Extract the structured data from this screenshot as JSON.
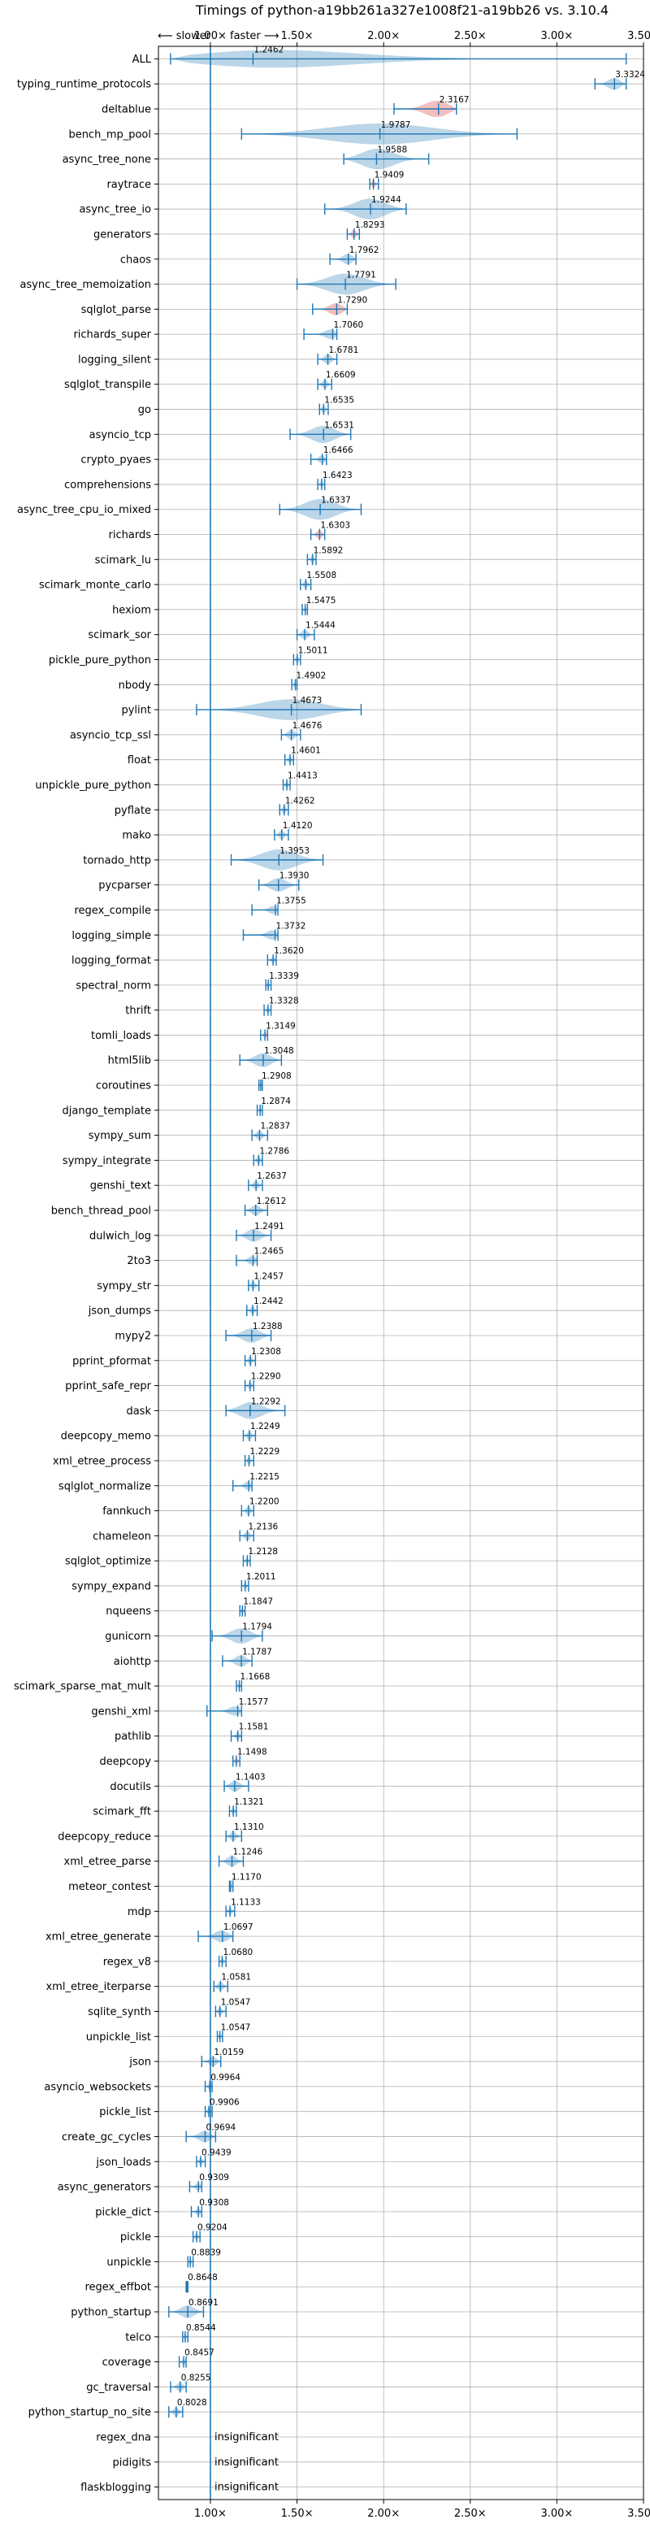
{
  "chart_data": {
    "type": "violin",
    "title": "Timings of python-a19bb261a327e1008f21-a19bb26 vs. 3.10.4",
    "direction_left": "⟵ slower",
    "direction_right": "faster ⟶",
    "xlim": [
      0.7,
      3.5
    ],
    "xticks": [
      1.0,
      1.5,
      2.0,
      2.5,
      3.0,
      3.5
    ],
    "xtick_labels": [
      "1.00×",
      "1.50×",
      "2.00×",
      "2.50×",
      "3.00×",
      "3.50×"
    ],
    "reference_line": 1.0,
    "grid": true,
    "colors": {
      "normal": "#1f77b4",
      "highlight": "#d62728",
      "axis": "#000000",
      "grid": "#b0b0b0"
    },
    "categories": [
      {
        "name": "ALL",
        "value": 1.2462,
        "min": 0.77,
        "max": 3.4
      },
      {
        "name": "typing_runtime_protocols",
        "value": 3.3324,
        "min": 3.22,
        "max": 3.4
      },
      {
        "name": "deltablue",
        "value": 2.3167,
        "min": 2.06,
        "max": 2.42,
        "highlight": true
      },
      {
        "name": "bench_mp_pool",
        "value": 1.9787,
        "min": 1.18,
        "max": 2.77
      },
      {
        "name": "async_tree_none",
        "value": 1.9588,
        "min": 1.77,
        "max": 2.26
      },
      {
        "name": "raytrace",
        "value": 1.9409,
        "min": 1.92,
        "max": 1.97,
        "highlight": true
      },
      {
        "name": "async_tree_io",
        "value": 1.9244,
        "min": 1.66,
        "max": 2.13
      },
      {
        "name": "generators",
        "value": 1.8293,
        "min": 1.79,
        "max": 1.86,
        "highlight": true
      },
      {
        "name": "chaos",
        "value": 1.7962,
        "min": 1.69,
        "max": 1.84
      },
      {
        "name": "async_tree_memoization",
        "value": 1.7791,
        "min": 1.5,
        "max": 2.07
      },
      {
        "name": "sqlglot_parse",
        "value": 1.729,
        "min": 1.59,
        "max": 1.79,
        "highlight": true
      },
      {
        "name": "richards_super",
        "value": 1.706,
        "min": 1.54,
        "max": 1.73
      },
      {
        "name": "logging_silent",
        "value": 1.6781,
        "min": 1.62,
        "max": 1.73
      },
      {
        "name": "sqlglot_transpile",
        "value": 1.6609,
        "min": 1.62,
        "max": 1.7
      },
      {
        "name": "go",
        "value": 1.6535,
        "min": 1.63,
        "max": 1.68
      },
      {
        "name": "asyncio_tcp",
        "value": 1.6531,
        "min": 1.46,
        "max": 1.81
      },
      {
        "name": "crypto_pyaes",
        "value": 1.6466,
        "min": 1.58,
        "max": 1.67
      },
      {
        "name": "comprehensions",
        "value": 1.6423,
        "min": 1.62,
        "max": 1.66
      },
      {
        "name": "async_tree_cpu_io_mixed",
        "value": 1.6337,
        "min": 1.4,
        "max": 1.87
      },
      {
        "name": "richards",
        "value": 1.6303,
        "min": 1.58,
        "max": 1.66,
        "highlight": true
      },
      {
        "name": "scimark_lu",
        "value": 1.5892,
        "min": 1.56,
        "max": 1.61
      },
      {
        "name": "scimark_monte_carlo",
        "value": 1.5508,
        "min": 1.52,
        "max": 1.58
      },
      {
        "name": "hexiom",
        "value": 1.5475,
        "min": 1.53,
        "max": 1.56
      },
      {
        "name": "scimark_sor",
        "value": 1.5444,
        "min": 1.5,
        "max": 1.6
      },
      {
        "name": "pickle_pure_python",
        "value": 1.5011,
        "min": 1.48,
        "max": 1.52
      },
      {
        "name": "nbody",
        "value": 1.4902,
        "min": 1.47,
        "max": 1.5
      },
      {
        "name": "pylint",
        "value": 1.4673,
        "min": 0.92,
        "max": 1.87
      },
      {
        "name": "asyncio_tcp_ssl",
        "value": 1.4676,
        "min": 1.41,
        "max": 1.52
      },
      {
        "name": "float",
        "value": 1.4601,
        "min": 1.43,
        "max": 1.48
      },
      {
        "name": "unpickle_pure_python",
        "value": 1.4413,
        "min": 1.42,
        "max": 1.46
      },
      {
        "name": "pyflate",
        "value": 1.4262,
        "min": 1.4,
        "max": 1.45
      },
      {
        "name": "mako",
        "value": 1.412,
        "min": 1.37,
        "max": 1.45
      },
      {
        "name": "tornado_http",
        "value": 1.3953,
        "min": 1.12,
        "max": 1.65
      },
      {
        "name": "pycparser",
        "value": 1.393,
        "min": 1.28,
        "max": 1.51
      },
      {
        "name": "regex_compile",
        "value": 1.3755,
        "min": 1.24,
        "max": 1.39
      },
      {
        "name": "logging_simple",
        "value": 1.3732,
        "min": 1.19,
        "max": 1.39
      },
      {
        "name": "logging_format",
        "value": 1.362,
        "min": 1.33,
        "max": 1.38
      },
      {
        "name": "spectral_norm",
        "value": 1.3339,
        "min": 1.32,
        "max": 1.35
      },
      {
        "name": "thrift",
        "value": 1.3328,
        "min": 1.31,
        "max": 1.35
      },
      {
        "name": "tomli_loads",
        "value": 1.3149,
        "min": 1.29,
        "max": 1.33,
        "highlight": true
      },
      {
        "name": "html5lib",
        "value": 1.3048,
        "min": 1.17,
        "max": 1.41
      },
      {
        "name": "coroutines",
        "value": 1.2908,
        "min": 1.28,
        "max": 1.3
      },
      {
        "name": "django_template",
        "value": 1.2874,
        "min": 1.27,
        "max": 1.3
      },
      {
        "name": "sympy_sum",
        "value": 1.2837,
        "min": 1.24,
        "max": 1.33
      },
      {
        "name": "sympy_integrate",
        "value": 1.2786,
        "min": 1.25,
        "max": 1.3
      },
      {
        "name": "genshi_text",
        "value": 1.2637,
        "min": 1.22,
        "max": 1.3
      },
      {
        "name": "bench_thread_pool",
        "value": 1.2612,
        "min": 1.2,
        "max": 1.33
      },
      {
        "name": "dulwich_log",
        "value": 1.2491,
        "min": 1.15,
        "max": 1.35
      },
      {
        "name": "2to3",
        "value": 1.2465,
        "min": 1.15,
        "max": 1.27
      },
      {
        "name": "sympy_str",
        "value": 1.2457,
        "min": 1.22,
        "max": 1.28
      },
      {
        "name": "json_dumps",
        "value": 1.2442,
        "min": 1.21,
        "max": 1.27
      },
      {
        "name": "mypy2",
        "value": 1.2388,
        "min": 1.09,
        "max": 1.35
      },
      {
        "name": "pprint_pformat",
        "value": 1.2308,
        "min": 1.2,
        "max": 1.26
      },
      {
        "name": "pprint_safe_repr",
        "value": 1.229,
        "min": 1.2,
        "max": 1.25
      },
      {
        "name": "dask",
        "value": 1.2292,
        "min": 1.09,
        "max": 1.43
      },
      {
        "name": "deepcopy_memo",
        "value": 1.2249,
        "min": 1.19,
        "max": 1.26
      },
      {
        "name": "xml_etree_process",
        "value": 1.2229,
        "min": 1.2,
        "max": 1.25
      },
      {
        "name": "sqlglot_normalize",
        "value": 1.2215,
        "min": 1.13,
        "max": 1.24
      },
      {
        "name": "fannkuch",
        "value": 1.22,
        "min": 1.18,
        "max": 1.25
      },
      {
        "name": "chameleon",
        "value": 1.2136,
        "min": 1.17,
        "max": 1.25
      },
      {
        "name": "sqlglot_optimize",
        "value": 1.2128,
        "min": 1.19,
        "max": 1.23
      },
      {
        "name": "sympy_expand",
        "value": 1.2011,
        "min": 1.18,
        "max": 1.22
      },
      {
        "name": "nqueens",
        "value": 1.1847,
        "min": 1.17,
        "max": 1.2
      },
      {
        "name": "gunicorn",
        "value": 1.1794,
        "min": 1.01,
        "max": 1.3
      },
      {
        "name": "aiohttp",
        "value": 1.1787,
        "min": 1.07,
        "max": 1.24
      },
      {
        "name": "scimark_sparse_mat_mult",
        "value": 1.1668,
        "min": 1.15,
        "max": 1.18
      },
      {
        "name": "genshi_xml",
        "value": 1.1577,
        "min": 0.98,
        "max": 1.18
      },
      {
        "name": "pathlib",
        "value": 1.1581,
        "min": 1.12,
        "max": 1.18
      },
      {
        "name": "deepcopy",
        "value": 1.1498,
        "min": 1.13,
        "max": 1.17,
        "highlight": true
      },
      {
        "name": "docutils",
        "value": 1.1403,
        "min": 1.08,
        "max": 1.22
      },
      {
        "name": "scimark_fft",
        "value": 1.1321,
        "min": 1.11,
        "max": 1.15
      },
      {
        "name": "deepcopy_reduce",
        "value": 1.131,
        "min": 1.09,
        "max": 1.18
      },
      {
        "name": "xml_etree_parse",
        "value": 1.1246,
        "min": 1.05,
        "max": 1.19
      },
      {
        "name": "meteor_contest",
        "value": 1.117,
        "min": 1.11,
        "max": 1.13
      },
      {
        "name": "mdp",
        "value": 1.1133,
        "min": 1.09,
        "max": 1.14
      },
      {
        "name": "xml_etree_generate",
        "value": 1.0697,
        "min": 0.93,
        "max": 1.13
      },
      {
        "name": "regex_v8",
        "value": 1.068,
        "min": 1.05,
        "max": 1.09
      },
      {
        "name": "xml_etree_iterparse",
        "value": 1.0581,
        "min": 1.02,
        "max": 1.1
      },
      {
        "name": "sqlite_synth",
        "value": 1.0547,
        "min": 1.03,
        "max": 1.09
      },
      {
        "name": "unpickle_list",
        "value": 1.0547,
        "min": 1.04,
        "max": 1.07
      },
      {
        "name": "json",
        "value": 1.0159,
        "min": 0.95,
        "max": 1.06
      },
      {
        "name": "asyncio_websockets",
        "value": 0.9964,
        "min": 0.97,
        "max": 1.01
      },
      {
        "name": "pickle_list",
        "value": 0.9906,
        "min": 0.97,
        "max": 1.01
      },
      {
        "name": "create_gc_cycles",
        "value": 0.9694,
        "min": 0.86,
        "max": 1.03
      },
      {
        "name": "json_loads",
        "value": 0.9439,
        "min": 0.92,
        "max": 0.97
      },
      {
        "name": "async_generators",
        "value": 0.9309,
        "min": 0.88,
        "max": 0.95
      },
      {
        "name": "pickle_dict",
        "value": 0.9308,
        "min": 0.89,
        "max": 0.95
      },
      {
        "name": "pickle",
        "value": 0.9204,
        "min": 0.9,
        "max": 0.94
      },
      {
        "name": "unpickle",
        "value": 0.8839,
        "min": 0.87,
        "max": 0.9
      },
      {
        "name": "regex_effbot",
        "value": 0.8648,
        "min": 0.86,
        "max": 0.87
      },
      {
        "name": "python_startup",
        "value": 0.8691,
        "min": 0.76,
        "max": 0.96
      },
      {
        "name": "telco",
        "value": 0.8544,
        "min": 0.84,
        "max": 0.87
      },
      {
        "name": "coverage",
        "value": 0.8457,
        "min": 0.82,
        "max": 0.86
      },
      {
        "name": "gc_traversal",
        "value": 0.8255,
        "min": 0.77,
        "max": 0.86
      },
      {
        "name": "python_startup_no_site",
        "value": 0.8028,
        "min": 0.76,
        "max": 0.84
      },
      {
        "name": "regex_dna",
        "value": null,
        "label": "insignificant"
      },
      {
        "name": "pidigits",
        "value": null,
        "label": "insignificant"
      },
      {
        "name": "flaskblogging",
        "value": null,
        "label": "insignificant"
      }
    ]
  }
}
